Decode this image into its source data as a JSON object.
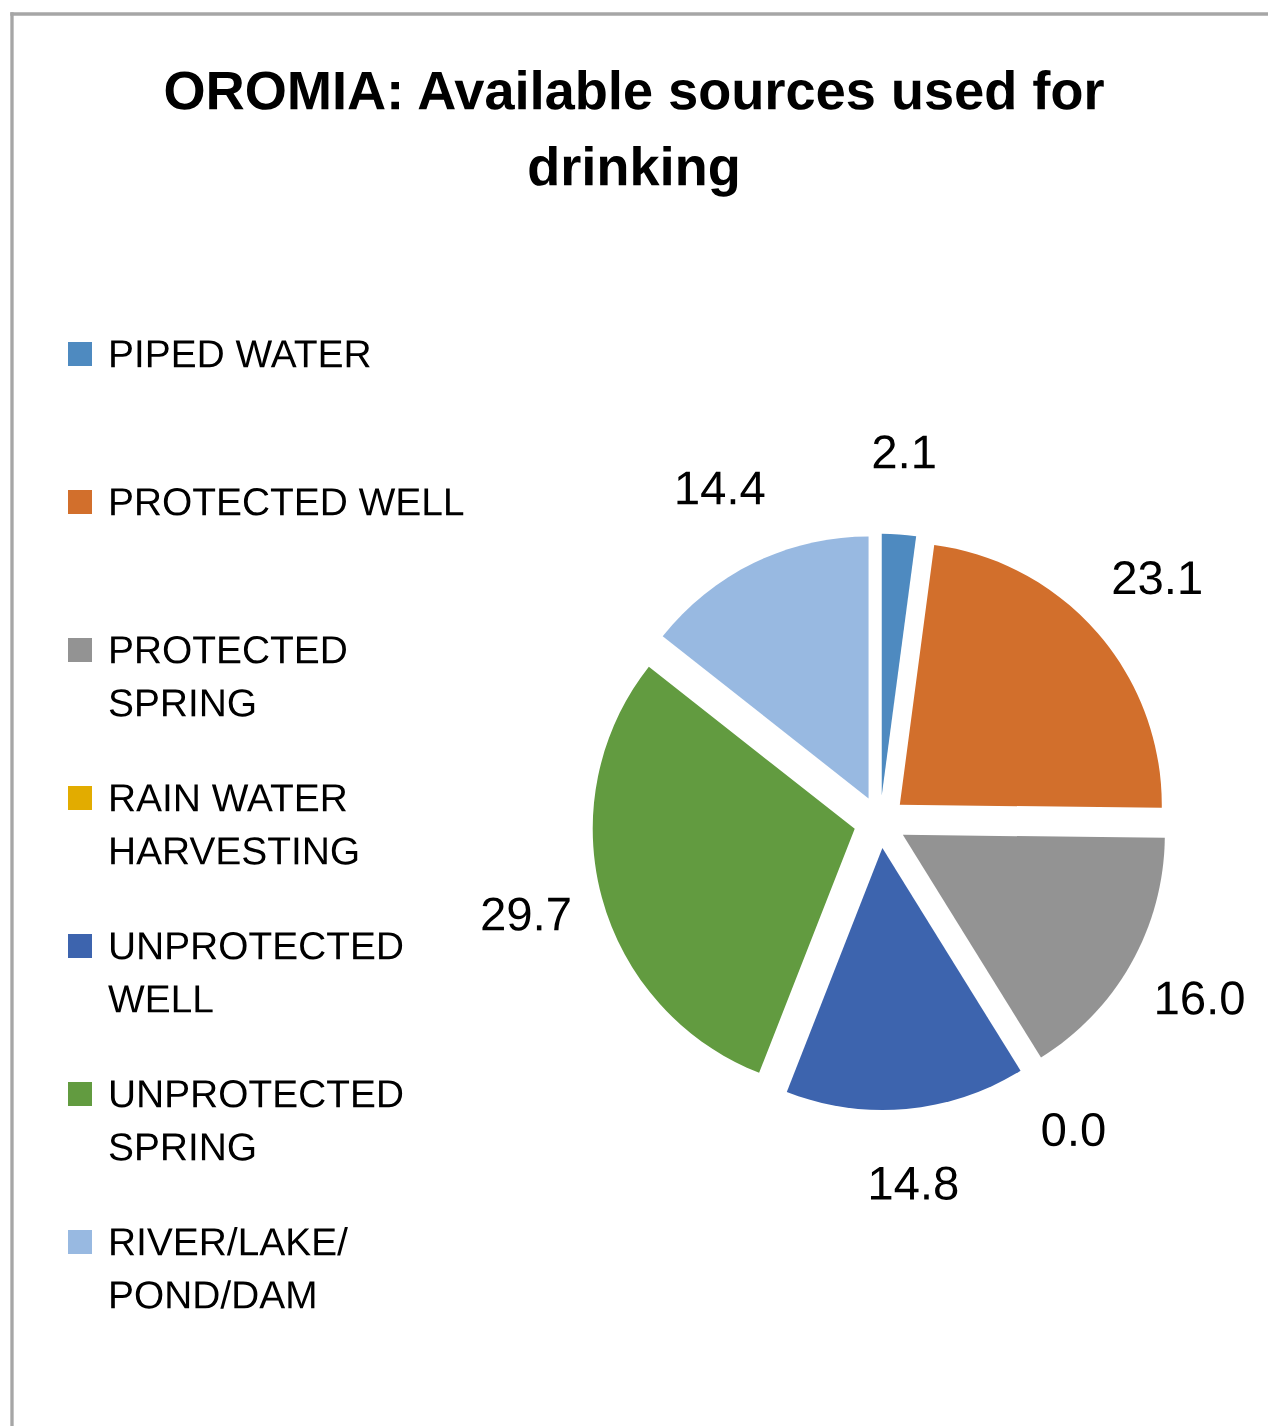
{
  "chart_data": {
    "type": "pie",
    "title": "OROMIA: Available sources used for\ndrinking",
    "categories": [
      "PIPED WATER",
      "PROTECTED WELL",
      "PROTECTED\nSPRING",
      "RAIN WATER\nHARVESTING",
      "UNPROTECTED\nWELL",
      "UNPROTECTED\nSPRING",
      "RIVER/LAKE/\nPOND/DAM"
    ],
    "values": [
      2.1,
      23.1,
      16.0,
      0.0,
      14.8,
      29.7,
      14.4
    ],
    "value_labels": [
      "2.1",
      "23.1",
      "16.0",
      "0.0",
      "14.8",
      "29.7",
      "14.4"
    ],
    "colors": [
      "#4e8ac0",
      "#d26f2c",
      "#939393",
      "#e2ac00",
      "#3d64ae",
      "#629b40",
      "#98b9e1"
    ],
    "legend": "left"
  }
}
